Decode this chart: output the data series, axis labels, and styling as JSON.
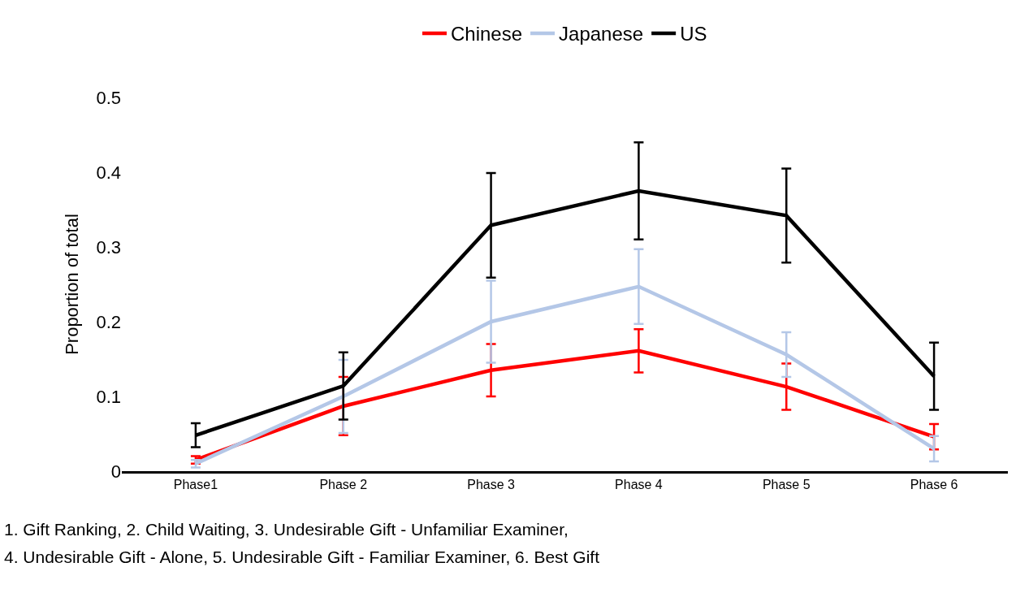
{
  "chart_data": {
    "type": "line",
    "ylabel": "Proportion of total",
    "categories": [
      "Phase1",
      "Phase 2",
      "Phase 3",
      "Phase 4",
      "Phase 5",
      "Phase 6"
    ],
    "series": [
      {
        "name": "Chinese",
        "color": "#ff0000",
        "values": [
          0.015,
          0.087,
          0.135,
          0.161,
          0.113,
          0.046
        ],
        "errors": [
          0.005,
          0.039,
          0.035,
          0.029,
          0.031,
          0.017
        ]
      },
      {
        "name": "Japanese",
        "color": "#b4c7e7",
        "values": [
          0.01,
          0.1,
          0.2,
          0.247,
          0.156,
          0.03
        ],
        "errors": [
          0.005,
          0.049,
          0.055,
          0.05,
          0.03,
          0.017
        ]
      },
      {
        "name": "US",
        "color": "#000000",
        "values": [
          0.048,
          0.114,
          0.329,
          0.375,
          0.342,
          0.127
        ],
        "errors": [
          0.016,
          0.045,
          0.07,
          0.065,
          0.063,
          0.045
        ]
      }
    ],
    "ylim": [
      0,
      0.5
    ],
    "yticks": [
      0,
      0.1,
      0.2,
      0.3,
      0.4,
      0.5
    ],
    "legend": "top",
    "marker": "none",
    "line_style": "solid",
    "annotations": [
      "1. Gift Ranking, 2. Child Waiting, 3. Undesirable Gift - Unfamiliar Examiner,",
      "4. Undesirable Gift - Alone, 5. Undesirable Gift - Familiar Examiner, 6. Best Gift"
    ]
  }
}
